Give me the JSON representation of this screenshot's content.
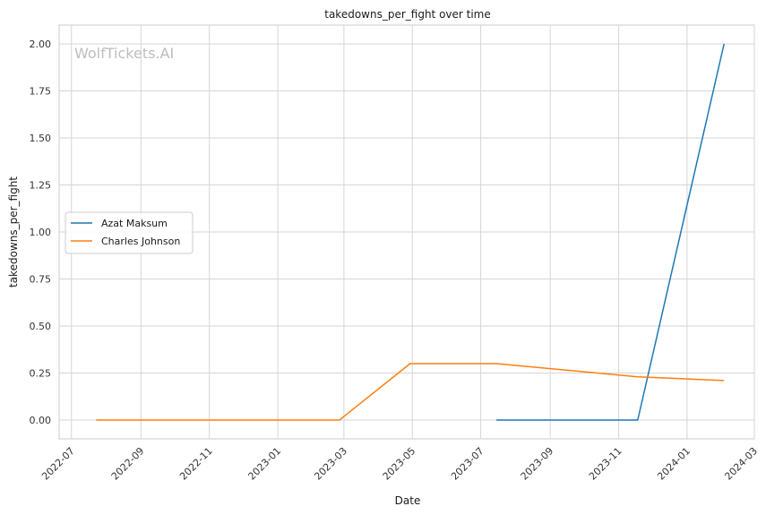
{
  "chart_data": {
    "type": "line",
    "title": "takedowns_per_fight over time",
    "xlabel": "Date",
    "ylabel": "takedowns_per_fight",
    "watermark": "WolfTickets.AI",
    "x_ticks": [
      "2022-07",
      "2022-09",
      "2022-11",
      "2023-01",
      "2023-03",
      "2023-05",
      "2023-07",
      "2023-09",
      "2023-11",
      "2024-01",
      "2024-03"
    ],
    "y_ticks": [
      "0.00",
      "0.25",
      "0.50",
      "0.75",
      "1.00",
      "1.25",
      "1.50",
      "1.75",
      "2.00"
    ],
    "xlim": [
      "2022-06-20",
      "2024-03-01"
    ],
    "ylim": [
      -0.1,
      2.1
    ],
    "grid": true,
    "legend_position": "center-left",
    "series": [
      {
        "name": "Azat Maksum",
        "color": "#1f77b4",
        "points": [
          {
            "x": "2023-07-15",
            "y": 0.0
          },
          {
            "x": "2023-11-18",
            "y": 0.0
          },
          {
            "x": "2024-02-03",
            "y": 2.0
          }
        ]
      },
      {
        "name": "Charles Johnson",
        "color": "#ff7f0e",
        "points": [
          {
            "x": "2022-07-23",
            "y": 0.0
          },
          {
            "x": "2023-02-25",
            "y": 0.0
          },
          {
            "x": "2023-04-29",
            "y": 0.3
          },
          {
            "x": "2023-07-15",
            "y": 0.3
          },
          {
            "x": "2023-11-18",
            "y": 0.23
          },
          {
            "x": "2024-02-03",
            "y": 0.21
          }
        ]
      }
    ]
  }
}
